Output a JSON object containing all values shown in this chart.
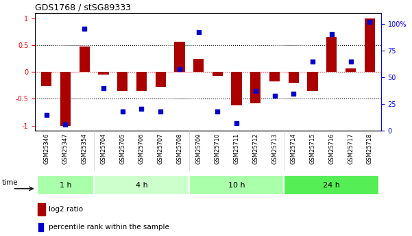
{
  "title": "GDS1768 / stSG89333",
  "samples": [
    "GSM25346",
    "GSM25347",
    "GSM25354",
    "GSM25704",
    "GSM25705",
    "GSM25706",
    "GSM25707",
    "GSM25708",
    "GSM25709",
    "GSM25710",
    "GSM25711",
    "GSM25712",
    "GSM25713",
    "GSM25714",
    "GSM25715",
    "GSM25716",
    "GSM25717",
    "GSM25718"
  ],
  "log2_ratio": [
    -0.27,
    -1.0,
    0.47,
    -0.05,
    -0.35,
    -0.35,
    -0.28,
    0.56,
    0.25,
    -0.08,
    -0.62,
    -0.58,
    -0.18,
    -0.2,
    -0.35,
    0.65,
    0.07,
    1.0
  ],
  "percentile": [
    10,
    1,
    90,
    35,
    13,
    16,
    13,
    53,
    87,
    13,
    2,
    32,
    28,
    30,
    60,
    85,
    60,
    97
  ],
  "time_groups": [
    {
      "label": "1 h",
      "start": 0,
      "end": 3,
      "color": "#aaffaa"
    },
    {
      "label": "4 h",
      "start": 3,
      "end": 8,
      "color": "#ccffcc"
    },
    {
      "label": "10 h",
      "start": 8,
      "end": 13,
      "color": "#aaffaa"
    },
    {
      "label": "24 h",
      "start": 13,
      "end": 18,
      "color": "#55ee55"
    }
  ],
  "bar_color": "#aa0000",
  "dot_color": "#0000cc",
  "ylim_left": [
    -1.1,
    1.1
  ],
  "ylim_right": [
    0,
    110
  ],
  "yticks_left": [
    -1,
    -0.5,
    0,
    0.5,
    1
  ],
  "yticks_right": [
    0,
    25,
    50,
    75,
    100
  ],
  "yticklabels_right": [
    "0",
    "25",
    "50",
    "75",
    "100%"
  ],
  "hlines_black": [
    -0.5,
    0.5
  ],
  "hline_red": 0,
  "bg_color": "#ffffff",
  "legend_log2_color": "#aa0000",
  "legend_pct_color": "#0000cc"
}
